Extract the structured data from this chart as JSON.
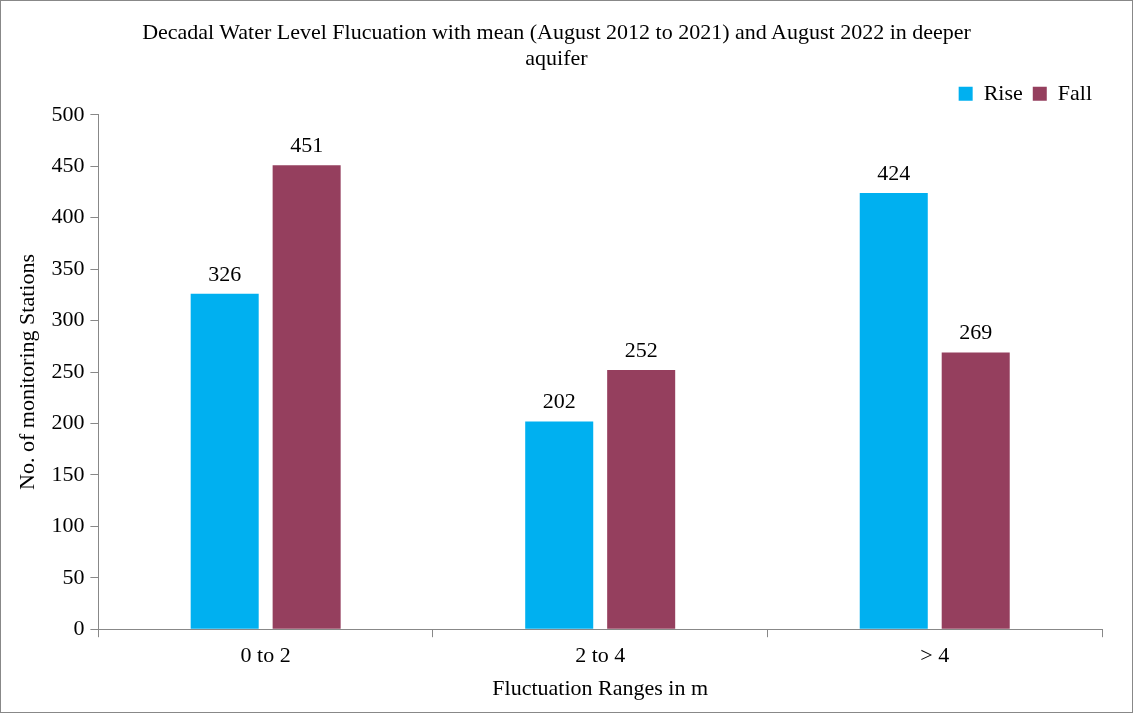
{
  "chart_data": {
    "type": "bar",
    "title": "Decadal Water Level Flucuation with mean (August 2012 to 2021) and August 2022 in deeper aquifer",
    "xlabel": "Fluctuation Ranges in m",
    "ylabel": "No. of monitoring Stations",
    "categories": [
      "0 to 2",
      "2 to 4",
      "> 4"
    ],
    "series": [
      {
        "name": "Rise",
        "color": "#00b0f0",
        "values": [
          326,
          202,
          424
        ]
      },
      {
        "name": "Fall",
        "color": "#953f5e",
        "values": [
          451,
          252,
          269
        ]
      }
    ],
    "ylim": [
      0,
      500
    ],
    "yticks": [
      0,
      50,
      100,
      150,
      200,
      250,
      300,
      350,
      400,
      450,
      500
    ],
    "grid": false,
    "legend": "top right",
    "data_labels": true
  }
}
